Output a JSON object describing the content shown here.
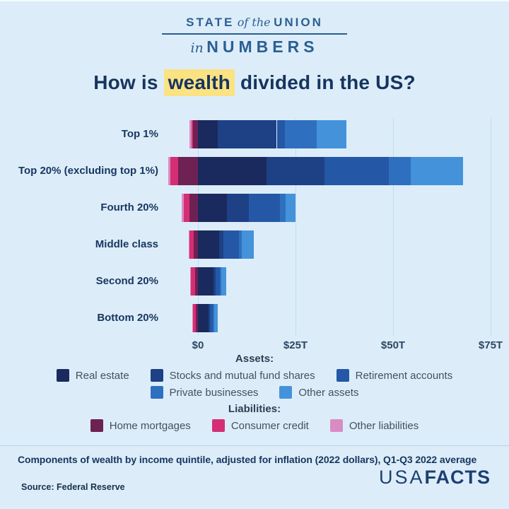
{
  "header": {
    "line1_part1": "STATE",
    "line1_part2": "of the",
    "line1_part3": "UNION",
    "line2_part1": "in",
    "line2_part2": "NUMBERS"
  },
  "title": {
    "prefix": "How is ",
    "highlight": "wealth",
    "suffix": " divided in the US?",
    "highlight_color": "#fbe282"
  },
  "chart_data": {
    "type": "bar",
    "orientation": "horizontal",
    "stacked": true,
    "unit": "trillions of dollars",
    "categories": [
      "Top 1%",
      "Top 20% (excluding top 1%)",
      "Fourth 20%",
      "Middle class",
      "Second 20%",
      "Bottom 20%"
    ],
    "x_axis": {
      "ticks": [
        "$0",
        "$25T",
        "$50T",
        "$75T"
      ],
      "values": [
        0,
        25,
        50,
        75
      ],
      "range": [
        -10,
        80
      ],
      "grid": true
    },
    "asset_series": [
      {
        "name": "Real estate",
        "color": "#1a2a5e",
        "values": [
          5.0,
          17.5,
          7.5,
          5.5,
          4.0,
          2.8
        ]
      },
      {
        "name": "Stocks and mutual fund shares",
        "color": "#1e4085",
        "values": [
          15.2,
          15.0,
          5.5,
          1.0,
          0.5,
          0.3
        ]
      },
      {
        "name": "Retirement accounts",
        "color": "#2458a6",
        "values": [
          2.0,
          16.5,
          8.0,
          4.0,
          1.2,
          0.7
        ]
      },
      {
        "name": "Private businesses",
        "color": "#2e70bf",
        "values": [
          8.2,
          5.5,
          1.5,
          0.8,
          0.3,
          0.3
        ]
      },
      {
        "name": "Other assets",
        "color": "#4493da",
        "values": [
          7.6,
          13.5,
          2.5,
          3.0,
          1.2,
          1.0
        ]
      }
    ],
    "liability_series": [
      {
        "name": "Home mortgages",
        "color": "#6e2153",
        "values": [
          1.2,
          5.0,
          2.2,
          1.0,
          0.8,
          0.6
        ]
      },
      {
        "name": "Consumer credit",
        "color": "#d62e74",
        "values": [
          0.5,
          2.0,
          1.5,
          1.2,
          1.0,
          0.7
        ]
      },
      {
        "name": "Other liabilities",
        "color": "#d98cc4",
        "values": [
          0.5,
          0.6,
          0.5,
          0.2,
          0.2,
          0.2
        ]
      }
    ],
    "legend_position": "bottom"
  },
  "legend": {
    "assets_header": "Assets:",
    "liabilities_header": "Liabilities:"
  },
  "footer": {
    "caption": "Components of wealth by income quintile, adjusted for inflation (2022 dollars), Q1-Q3 2022 average",
    "source": "Source: Federal Reserve",
    "logo_light": "USA",
    "logo_bold": "FACTS"
  }
}
